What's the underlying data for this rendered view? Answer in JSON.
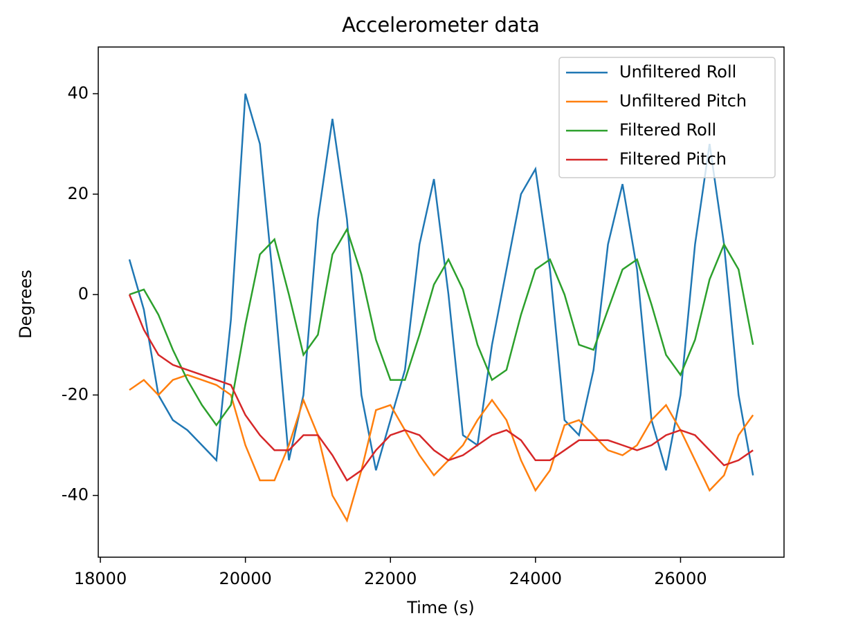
{
  "chart_data": {
    "type": "line",
    "title": "Accelerometer data",
    "x_label": "Time (s)",
    "y_label": "Degrees",
    "x": [
      18400,
      18600,
      18800,
      19000,
      19200,
      19400,
      19600,
      19800,
      20000,
      20200,
      20400,
      20600,
      20800,
      21000,
      21200,
      21400,
      21600,
      21800,
      22000,
      22200,
      22400,
      22600,
      22800,
      23000,
      23200,
      23400,
      23600,
      23800,
      24000,
      24200,
      24400,
      24600,
      24800,
      25000,
      25200,
      25400,
      25600,
      25800,
      26000,
      26200,
      26400,
      26600,
      26800,
      27000
    ],
    "series": [
      {
        "name": "Unfiltered Roll",
        "color": "#1f77b4",
        "values": [
          7,
          -3,
          -20,
          -25,
          -27,
          -30,
          -33,
          -5,
          40,
          30,
          0,
          -33,
          -20,
          15,
          35,
          15,
          -20,
          -35,
          -25,
          -15,
          10,
          23,
          0,
          -28,
          -30,
          -10,
          5,
          20,
          25,
          5,
          -25,
          -28,
          -15,
          10,
          22,
          5,
          -25,
          -35,
          -20,
          10,
          30,
          10,
          -20,
          -36
        ]
      },
      {
        "name": "Unfiltered Pitch",
        "color": "#ff7f0e",
        "values": [
          -19,
          -17,
          -20,
          -17,
          -16,
          -17,
          -18,
          -20,
          -30,
          -37,
          -37,
          -30,
          -21,
          -28,
          -40,
          -45,
          -35,
          -23,
          -22,
          -27,
          -32,
          -36,
          -33,
          -30,
          -25,
          -21,
          -25,
          -33,
          -39,
          -35,
          -26,
          -25,
          -28,
          -31,
          -32,
          -30,
          -25,
          -22,
          -27,
          -33,
          -39,
          -36,
          -28,
          -24
        ]
      },
      {
        "name": "Filtered Roll",
        "color": "#2ca02c",
        "values": [
          0,
          1,
          -4,
          -11,
          -17,
          -22,
          -26,
          -22,
          -6,
          8,
          11,
          0,
          -12,
          -8,
          8,
          13,
          4,
          -9,
          -17,
          -17,
          -8,
          2,
          7,
          1,
          -10,
          -17,
          -15,
          -4,
          5,
          7,
          0,
          -10,
          -11,
          -3,
          5,
          7,
          -2,
          -12,
          -16,
          -9,
          3,
          10,
          5,
          -10
        ]
      },
      {
        "name": "Filtered Pitch",
        "color": "#d62728",
        "values": [
          0,
          -7,
          -12,
          -14,
          -15,
          -16,
          -17,
          -18,
          -24,
          -28,
          -31,
          -31,
          -28,
          -28,
          -32,
          -37,
          -35,
          -31,
          -28,
          -27,
          -28,
          -31,
          -33,
          -32,
          -30,
          -28,
          -27,
          -29,
          -33,
          -33,
          -31,
          -29,
          -29,
          -29,
          -30,
          -31,
          -30,
          -28,
          -27,
          -28,
          -31,
          -34,
          -33,
          -31
        ]
      }
    ],
    "xlim": [
      17971,
      27427
    ],
    "ylim": [
      -52.3,
      49.3
    ],
    "xticks": [
      18000,
      20000,
      22000,
      24000,
      26000
    ],
    "yticks": [
      -40,
      -20,
      0,
      20,
      40
    ],
    "legend": "upper right"
  }
}
